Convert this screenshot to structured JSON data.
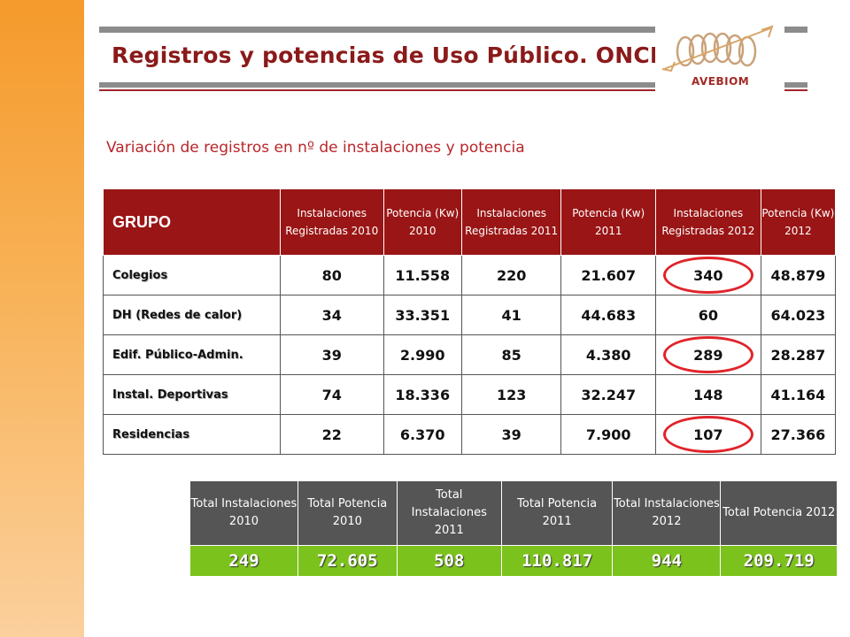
{
  "title": "Registros y potencias de Uso Público. ONCB",
  "logo_text": "AVEBIOM",
  "subtitle": "Variación de registros en nº de instalaciones y potencia",
  "colors": {
    "header_red": "#9a1515",
    "total_green": "#7cc21c",
    "highlight_ring": "#e0242a",
    "side_orange": "#f59a2c"
  },
  "main_table": {
    "headers": [
      "GRUPO",
      "Instalaciones Registradas 2010",
      "Potencia (Kw) 2010",
      "Instalaciones Registradas 2011",
      "Potencia (Kw) 2011",
      "Instalaciones Registradas 2012",
      "Potencia (Kw) 2012"
    ],
    "rows": [
      {
        "grupo": "Colegios",
        "cells": [
          "80",
          "11.558",
          "220",
          "21.607",
          "340",
          "48.879"
        ]
      },
      {
        "grupo": "DH (Redes de calor)",
        "cells": [
          "34",
          "33.351",
          "41",
          "44.683",
          "60",
          "64.023"
        ]
      },
      {
        "grupo": "Edif. Público-Admin.",
        "cells": [
          "39",
          "2.990",
          "85",
          "4.380",
          "289",
          "28.287"
        ]
      },
      {
        "grupo": "Instal. Deportivas",
        "cells": [
          "74",
          "18.336",
          "123",
          "32.247",
          "148",
          "41.164"
        ]
      },
      {
        "grupo": "Residencias",
        "cells": [
          "22",
          "6.370",
          "39",
          "7.900",
          "107",
          "27.366"
        ]
      }
    ]
  },
  "totals_table": {
    "headers": [
      "Total Instalaciones 2010",
      "Total Potencia 2010",
      "Total Instalaciones 2011",
      "Total Potencia 2011",
      "Total Instalaciones 2012",
      "Total Potencia 2012"
    ],
    "values": [
      "249",
      "72.605",
      "508",
      "110.817",
      "944",
      "209.719"
    ]
  }
}
